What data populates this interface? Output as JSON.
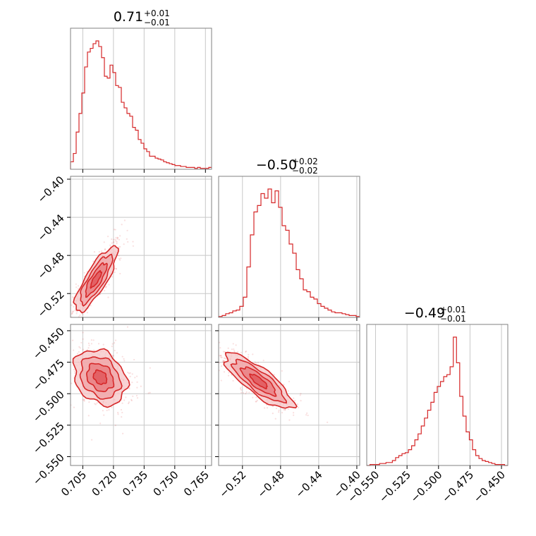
{
  "chart_data": {
    "type": "corner",
    "color": "#d62728",
    "grid": true,
    "parameters": [
      {
        "title_value": "0.71",
        "title_plus": "+0.01",
        "title_minus": "−0.01",
        "range": [
          0.699,
          0.768
        ],
        "ticks": [
          0.705,
          0.72,
          0.735,
          0.75,
          0.765
        ],
        "tick_labels": [
          "0.705",
          "0.720",
          "0.735",
          "0.750",
          "0.765"
        ]
      },
      {
        "title_value": "−0.50",
        "title_plus": "+0.02",
        "title_minus": "−0.02",
        "range": [
          -0.545,
          -0.397
        ],
        "ticks": [
          -0.52,
          -0.48,
          -0.44,
          -0.4
        ],
        "tick_labels": [
          "−0.52",
          "−0.48",
          "−0.44",
          "−0.40"
        ]
      },
      {
        "title_value": "−0.49",
        "title_plus": "+0.01",
        "title_minus": "−0.01",
        "range": [
          -0.557,
          -0.445
        ],
        "ticks": [
          -0.55,
          -0.525,
          -0.5,
          -0.475,
          -0.45
        ],
        "tick_labels": [
          "−0.550",
          "−0.525",
          "−0.500",
          "−0.475",
          "−0.450"
        ]
      }
    ],
    "histograms": [
      {
        "parameter": 0,
        "bin_edges": [
          0.699,
          0.768
        ],
        "counts": [
          8,
          17,
          40,
          60,
          82,
          110,
          126,
          130,
          135,
          138,
          132,
          120,
          100,
          98,
          112,
          104,
          90,
          88,
          72,
          66,
          60,
          57,
          45,
          42,
          32,
          28,
          22,
          19,
          14,
          14,
          12,
          11,
          10,
          8,
          7,
          6,
          5,
          4,
          4,
          3,
          3,
          2,
          2,
          2,
          1,
          2,
          1,
          1,
          1,
          2
        ]
      },
      {
        "parameter": 1,
        "bin_edges": [
          -0.545,
          -0.397
        ],
        "counts": [
          1,
          2,
          4,
          5,
          7,
          8,
          12,
          22,
          55,
          90,
          115,
          122,
          135,
          130,
          140,
          125,
          138,
          120,
          100,
          95,
          80,
          70,
          52,
          42,
          30,
          28,
          22,
          20,
          15,
          12,
          10,
          8,
          6,
          5,
          5,
          4,
          3,
          2,
          2,
          1
        ]
      },
      {
        "parameter": 2,
        "bin_edges": [
          -0.557,
          -0.445
        ],
        "counts": [
          0,
          1,
          1,
          1,
          2,
          2,
          3,
          3,
          5,
          8,
          10,
          12,
          13,
          16,
          20,
          26,
          32,
          40,
          48,
          56,
          64,
          74,
          80,
          85,
          90,
          92,
          100,
          130,
          104,
          70,
          50,
          34,
          26,
          16,
          10,
          7,
          5,
          4,
          3,
          2,
          1,
          1,
          1,
          0
        ]
      }
    ],
    "pairs": [
      {
        "x_param": 0,
        "y_param": 1,
        "mean": [
          0.7115,
          -0.505
        ],
        "sd": [
          0.0052,
          0.017
        ],
        "correlation": 0.82
      },
      {
        "x_param": 0,
        "y_param": 2,
        "mean": [
          0.7135,
          -0.487
        ],
        "sd": [
          0.0065,
          0.011
        ],
        "correlation": -0.25
      },
      {
        "x_param": 1,
        "y_param": 2,
        "mean": [
          -0.503,
          -0.49
        ],
        "sd": [
          0.018,
          0.011
        ],
        "correlation": -0.82
      }
    ]
  }
}
